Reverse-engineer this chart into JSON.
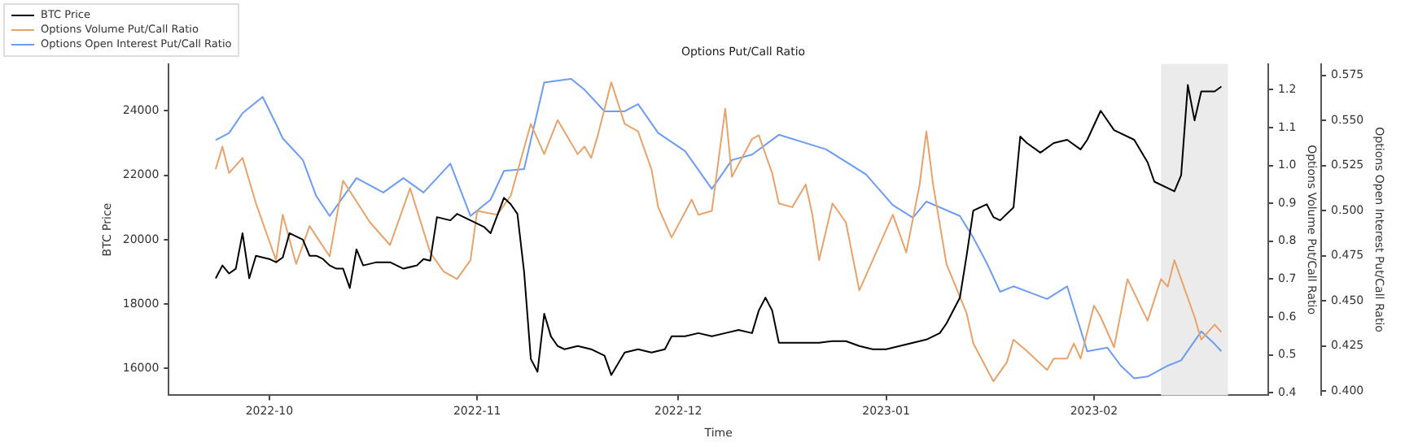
{
  "chart_data": {
    "type": "line",
    "title": "Options Put/Call Ratio",
    "xlabel": "Time",
    "ylabel": "BTC Price",
    "y2label": "Options Volume Put/Call Ratio",
    "y3label": "Options Open Interest Put/Call Ratio",
    "xlim": [
      "2022-09-16",
      "2023-02-27"
    ],
    "xticks": [
      {
        "value": "2022-10-01",
        "label": "2022-10"
      },
      {
        "value": "2022-11-01",
        "label": "2022-11"
      },
      {
        "value": "2022-12-01",
        "label": "2022-12"
      },
      {
        "value": "2023-01-01",
        "label": "2023-01"
      },
      {
        "value": "2023-02-01",
        "label": "2023-02"
      }
    ],
    "ylim": [
      15170,
      25450
    ],
    "yticks": [
      16000,
      18000,
      20000,
      22000,
      24000
    ],
    "y2lim": [
      0.393,
      1.268
    ],
    "y2ticks": [
      0.4,
      0.5,
      0.6,
      0.7,
      0.8,
      0.9,
      {
        "value": 1,
        "label": "1.0"
      },
      1.1,
      1.2
    ],
    "y3lim": [
      0.3976,
      0.5812
    ],
    "y3ticks": [
      {
        "value": 0.4,
        "label": "0.400"
      },
      {
        "value": 0.425,
        "label": "0.425"
      },
      {
        "value": 0.45,
        "label": "0.450"
      },
      {
        "value": 0.475,
        "label": "0.475"
      },
      {
        "value": 0.5,
        "label": "0.500"
      },
      {
        "value": 0.525,
        "label": "0.525"
      },
      {
        "value": 0.55,
        "label": "0.550"
      },
      {
        "value": 0.575,
        "label": "0.575"
      }
    ],
    "legend": "top left",
    "marker": "none",
    "line_style": "solid",
    "bands": [
      {
        "axis": "x",
        "from": "2023-02-11",
        "to": "2023-02-21",
        "color": "#ebebeb"
      }
    ],
    "series": [
      {
        "name": "BTC Price",
        "color": "#000000",
        "x": [
          "2022-09-23",
          "2022-09-24",
          "2022-09-25",
          "2022-09-26",
          "2022-09-27",
          "2022-09-28",
          "2022-09-29",
          "2022-09-30",
          "2022-10-01",
          "2022-10-02",
          "2022-10-03",
          "2022-10-04",
          "2022-10-05",
          "2022-10-06",
          "2022-10-07",
          "2022-10-08",
          "2022-10-09",
          "2022-10-10",
          "2022-10-11",
          "2022-10-12",
          "2022-10-13",
          "2022-10-14",
          "2022-10-15",
          "2022-10-17",
          "2022-10-19",
          "2022-10-21",
          "2022-10-23",
          "2022-10-24",
          "2022-10-25",
          "2022-10-26",
          "2022-10-28",
          "2022-10-29",
          "2022-10-31",
          "2022-11-02",
          "2022-11-03",
          "2022-11-05",
          "2022-11-06",
          "2022-11-07",
          "2022-11-08",
          "2022-11-09",
          "2022-11-10",
          "2022-11-11",
          "2022-11-12",
          "2022-11-13",
          "2022-11-14",
          "2022-11-16",
          "2022-11-18",
          "2022-11-20",
          "2022-11-21",
          "2022-11-23",
          "2022-11-25",
          "2022-11-27",
          "2022-11-29",
          "2022-11-30",
          "2022-12-02",
          "2022-12-04",
          "2022-12-06",
          "2022-12-08",
          "2022-12-10",
          "2022-12-12",
          "2022-12-13",
          "2022-12-14",
          "2022-12-15",
          "2022-12-16",
          "2022-12-18",
          "2022-12-20",
          "2022-12-22",
          "2022-12-24",
          "2022-12-26",
          "2022-12-28",
          "2022-12-30",
          "2023-01-01",
          "2023-01-03",
          "2023-01-05",
          "2023-01-07",
          "2023-01-09",
          "2023-01-10",
          "2023-01-12",
          "2023-01-13",
          "2023-01-14",
          "2023-01-16",
          "2023-01-17",
          "2023-01-18",
          "2023-01-20",
          "2023-01-21",
          "2023-01-22",
          "2023-01-24",
          "2023-01-26",
          "2023-01-28",
          "2023-01-30",
          "2023-01-31",
          "2023-02-02",
          "2023-02-04",
          "2023-02-07",
          "2023-02-09",
          "2023-02-10",
          "2023-02-13",
          "2023-02-14",
          "2023-02-15",
          "2023-02-16",
          "2023-02-17",
          "2023-02-19",
          "2023-02-20"
        ],
        "values": [
          18800,
          19200,
          18950,
          19100,
          20200,
          18800,
          19500,
          19450,
          19400,
          19300,
          19450,
          20200,
          20100,
          20000,
          19500,
          19500,
          19400,
          19200,
          19100,
          19100,
          18500,
          19700,
          19200,
          19300,
          19300,
          19100,
          19200,
          19400,
          19350,
          20700,
          20600,
          20800,
          20600,
          20400,
          20200,
          21300,
          21100,
          20800,
          19000,
          16300,
          15900,
          17700,
          17000,
          16700,
          16600,
          16700,
          16600,
          16400,
          15800,
          16500,
          16600,
          16500,
          16600,
          17000,
          17000,
          17100,
          17000,
          17100,
          17200,
          17100,
          17800,
          18200,
          17800,
          16800,
          16800,
          16800,
          16800,
          16850,
          16850,
          16700,
          16600,
          16600,
          16700,
          16800,
          16900,
          17100,
          17400,
          18200,
          19500,
          20900,
          21100,
          20700,
          20600,
          21000,
          23200,
          23000,
          22700,
          23000,
          23100,
          22800,
          23100,
          24000,
          23400,
          23100,
          22400,
          21800,
          21500,
          22000,
          24800,
          23700,
          24600,
          24600,
          24750
        ]
      },
      {
        "name": "Options Volume Put/Call Ratio",
        "color": "#e8a36b",
        "axis": "y2",
        "x": [
          "2022-09-23",
          "2022-09-24",
          "2022-09-25",
          "2022-09-27",
          "2022-09-29",
          "2022-10-02",
          "2022-10-03",
          "2022-10-05",
          "2022-10-07",
          "2022-10-10",
          "2022-10-12",
          "2022-10-16",
          "2022-10-19",
          "2022-10-22",
          "2022-10-25",
          "2022-10-27",
          "2022-10-29",
          "2022-10-31",
          "2022-11-01",
          "2022-11-04",
          "2022-11-06",
          "2022-11-09",
          "2022-11-11",
          "2022-11-13",
          "2022-11-16",
          "2022-11-17",
          "2022-11-18",
          "2022-11-19",
          "2022-11-21",
          "2022-11-23",
          "2022-11-25",
          "2022-11-27",
          "2022-11-28",
          "2022-11-30",
          "2022-12-03",
          "2022-12-04",
          "2022-12-06",
          "2022-12-08",
          "2022-12-09",
          "2022-12-12",
          "2022-12-13",
          "2022-12-15",
          "2022-12-16",
          "2022-12-18",
          "2022-12-20",
          "2022-12-21",
          "2022-12-22",
          "2022-12-24",
          "2022-12-26",
          "2022-12-28",
          "2022-12-30",
          "2023-01-02",
          "2023-01-04",
          "2023-01-06",
          "2023-01-07",
          "2023-01-08",
          "2023-01-10",
          "2023-01-13",
          "2023-01-14",
          "2023-01-17",
          "2023-01-19",
          "2023-01-20",
          "2023-01-22",
          "2023-01-25",
          "2023-01-26",
          "2023-01-28",
          "2023-01-29",
          "2023-01-30",
          "2023-02-01",
          "2023-02-02",
          "2023-02-04",
          "2023-02-06",
          "2023-02-09",
          "2023-02-11",
          "2023-02-12",
          "2023-02-13",
          "2023-02-16",
          "2023-02-17",
          "2023-02-19",
          "2023-02-20"
        ],
        "values": [
          0.99,
          1.05,
          0.98,
          1.02,
          0.9,
          0.75,
          0.87,
          0.74,
          0.84,
          0.76,
          0.96,
          0.85,
          0.79,
          0.94,
          0.77,
          0.72,
          0.7,
          0.75,
          0.88,
          0.87,
          0.92,
          1.11,
          1.03,
          1.12,
          1.03,
          1.05,
          1.02,
          1.08,
          1.22,
          1.11,
          1.09,
          0.99,
          0.89,
          0.81,
          0.91,
          0.87,
          0.88,
          1.15,
          0.97,
          1.07,
          1.08,
          0.98,
          0.9,
          0.89,
          0.95,
          0.87,
          0.75,
          0.9,
          0.85,
          0.67,
          0.75,
          0.87,
          0.77,
          0.95,
          1.09,
          0.95,
          0.74,
          0.61,
          0.53,
          0.43,
          0.48,
          0.54,
          0.51,
          0.46,
          0.49,
          0.49,
          0.53,
          0.49,
          0.63,
          0.6,
          0.52,
          0.7,
          0.59,
          0.7,
          0.68,
          0.75,
          0.6,
          0.54,
          0.58,
          0.56
        ]
      },
      {
        "name": "Options Open Interest Put/Call Ratio",
        "color": "#6d9cf0",
        "axis": "y3",
        "x": [
          "2022-09-23",
          "2022-09-25",
          "2022-09-27",
          "2022-09-30",
          "2022-10-02",
          "2022-10-03",
          "2022-10-06",
          "2022-10-08",
          "2022-10-10",
          "2022-10-14",
          "2022-10-18",
          "2022-10-21",
          "2022-10-24",
          "2022-10-28",
          "2022-10-31",
          "2022-11-03",
          "2022-11-05",
          "2022-11-08",
          "2022-11-11",
          "2022-11-15",
          "2022-11-17",
          "2022-11-20",
          "2022-11-23",
          "2022-11-25",
          "2022-11-28",
          "2022-12-02",
          "2022-12-06",
          "2022-12-09",
          "2022-12-12",
          "2022-12-16",
          "2022-12-23",
          "2022-12-29",
          "2023-01-02",
          "2023-01-05",
          "2023-01-07",
          "2023-01-12",
          "2023-01-14",
          "2023-01-16",
          "2023-01-18",
          "2023-01-20",
          "2023-01-25",
          "2023-01-28",
          "2023-01-31",
          "2023-02-03",
          "2023-02-05",
          "2023-02-07",
          "2023-02-09",
          "2023-02-12",
          "2023-02-14",
          "2023-02-17",
          "2023-02-19",
          "2023-02-20"
        ],
        "values": [
          0.539,
          0.543,
          0.554,
          0.563,
          0.548,
          0.54,
          0.528,
          0.508,
          0.497,
          0.518,
          0.51,
          0.518,
          0.51,
          0.526,
          0.497,
          0.506,
          0.522,
          0.523,
          0.571,
          0.573,
          0.567,
          0.555,
          0.555,
          0.559,
          0.543,
          0.533,
          0.512,
          0.528,
          0.531,
          0.542,
          0.534,
          0.52,
          0.503,
          0.496,
          0.505,
          0.497,
          0.485,
          0.471,
          0.455,
          0.458,
          0.451,
          0.458,
          0.422,
          0.424,
          0.414,
          0.407,
          0.408,
          0.414,
          0.417,
          0.433,
          0.426,
          0.422
        ]
      }
    ]
  }
}
